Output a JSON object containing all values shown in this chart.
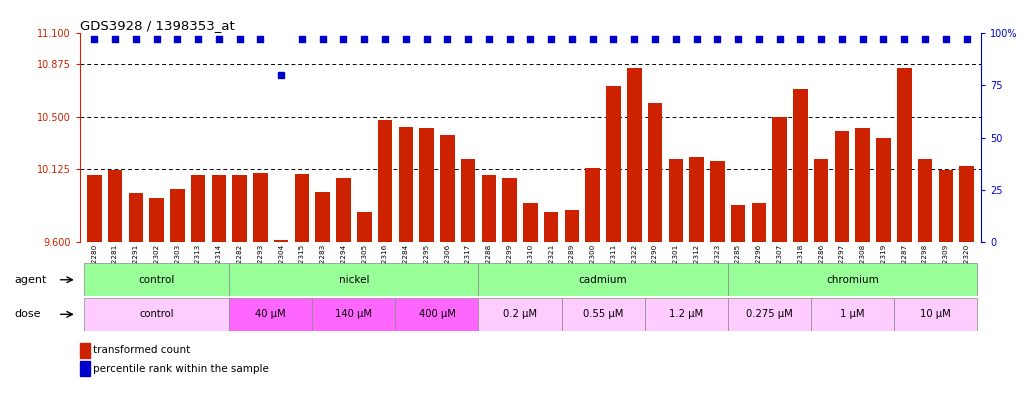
{
  "title": "GDS3928 / 1398353_at",
  "samples": [
    "GSM782280",
    "GSM782281",
    "GSM782291",
    "GSM782302",
    "GSM782303",
    "GSM782313",
    "GSM782314",
    "GSM782282",
    "GSM782293",
    "GSM782304",
    "GSM782315",
    "GSM782283",
    "GSM782294",
    "GSM782305",
    "GSM782316",
    "GSM782284",
    "GSM782295",
    "GSM782306",
    "GSM782317",
    "GSM782288",
    "GSM782299",
    "GSM782310",
    "GSM782321",
    "GSM782289",
    "GSM782300",
    "GSM782311",
    "GSM782322",
    "GSM782290",
    "GSM782301",
    "GSM782312",
    "GSM782323",
    "GSM782285",
    "GSM782296",
    "GSM782307",
    "GSM782318",
    "GSM782286",
    "GSM782297",
    "GSM782308",
    "GSM782319",
    "GSM782287",
    "GSM782298",
    "GSM782309",
    "GSM782320"
  ],
  "bar_values": [
    10.08,
    10.12,
    9.95,
    9.92,
    9.98,
    10.08,
    10.08,
    10.08,
    10.1,
    9.62,
    10.09,
    9.96,
    10.06,
    9.82,
    10.48,
    10.43,
    10.42,
    10.37,
    10.2,
    10.08,
    10.06,
    9.88,
    9.82,
    9.83,
    10.13,
    10.72,
    10.85,
    10.6,
    10.2,
    10.21,
    10.18,
    9.87,
    9.88,
    10.5,
    10.7,
    10.2,
    10.4,
    10.42,
    10.35,
    10.85,
    10.2,
    10.12,
    10.15
  ],
  "percentile_right_values": [
    97,
    97,
    97,
    97,
    97,
    97,
    97,
    97,
    97,
    80,
    97,
    97,
    97,
    97,
    97,
    97,
    97,
    97,
    97,
    97,
    97,
    97,
    97,
    97,
    97,
    97,
    97,
    97,
    97,
    97,
    97,
    97,
    97,
    97,
    97,
    97,
    97,
    97,
    97,
    97,
    97,
    97,
    97
  ],
  "bar_bottom": 9.6,
  "ylim_left": [
    9.6,
    11.1
  ],
  "yticks_left": [
    9.6,
    10.125,
    10.5,
    10.875,
    11.1
  ],
  "ylim_right": [
    0,
    100
  ],
  "yticks_right": [
    0,
    25,
    50,
    75,
    100
  ],
  "bar_color": "#cc2200",
  "dot_color": "#0000cc",
  "agent_color": "#99ff99",
  "dose_color_light": "#ffccff",
  "dose_color_dark": "#ff66ff",
  "legend_bar_label": "transformed count",
  "legend_dot_label": "percentile rank within the sample",
  "background_color": "#ffffff"
}
